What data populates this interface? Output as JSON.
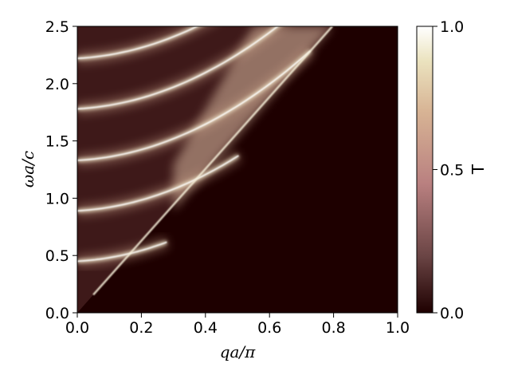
{
  "chart_data": {
    "type": "heatmap",
    "title": "",
    "xlabel": "qa/π",
    "ylabel": "ωa/c",
    "xlim": [
      0.0,
      1.0
    ],
    "ylim": [
      0.0,
      2.5
    ],
    "x_ticks": [
      "0.0",
      "0.2",
      "0.4",
      "0.6",
      "0.8",
      "1.0"
    ],
    "y_ticks": [
      "0.0",
      "0.5",
      "1.0",
      "1.5",
      "2.0",
      "2.5"
    ],
    "colorbar": {
      "label": "T",
      "range": [
        0.0,
        1.0
      ],
      "ticks": [
        "0.0",
        "0.5",
        "1.0"
      ],
      "colormap": "pink",
      "colors": [
        "#1e0000",
        "#b98080",
        "#e6c7a3",
        "#ffffff"
      ]
    },
    "light_line_slope": 3.14,
    "bright_band_onsets": [
      {
        "x": 0.0,
        "y": 0.45,
        "value": 1.0
      },
      {
        "x": 0.0,
        "y": 0.89,
        "value": 1.0
      },
      {
        "x": 0.0,
        "y": 1.33,
        "value": 1.0
      },
      {
        "x": 0.0,
        "y": 1.78,
        "value": 1.0
      },
      {
        "x": 0.0,
        "y": 2.22,
        "value": 1.0
      }
    ],
    "forbidden_region": {
      "description_value": 0.0
    },
    "grid": false
  }
}
